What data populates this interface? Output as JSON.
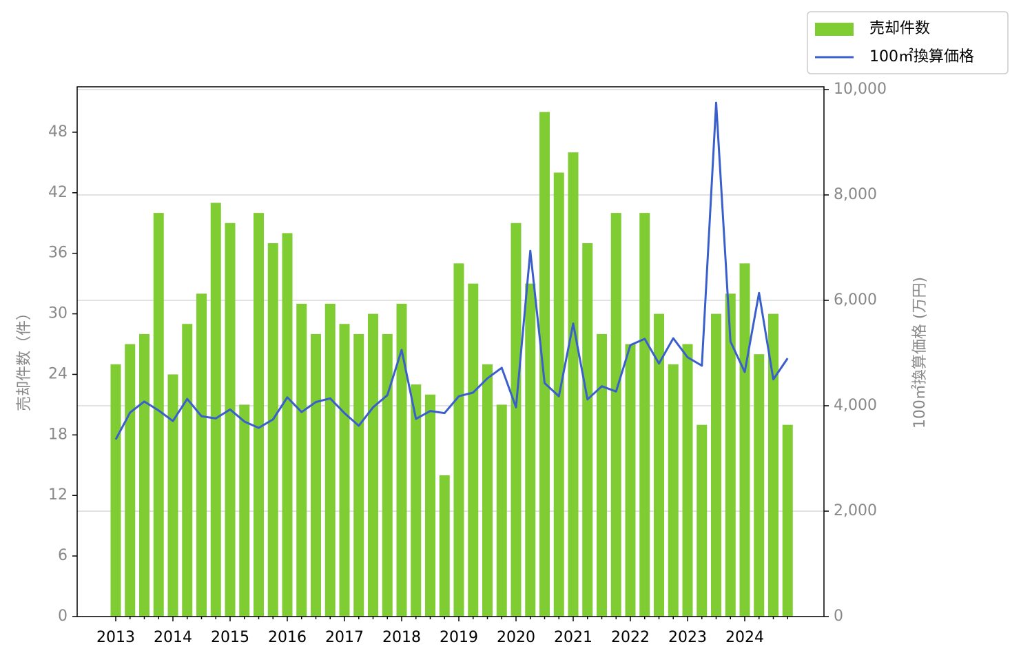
{
  "chart_data": {
    "type": "bar_line",
    "categories": [
      "2013",
      null,
      null,
      null,
      "2014",
      null,
      null,
      null,
      "2015",
      null,
      null,
      null,
      "2016",
      null,
      null,
      null,
      "2017",
      null,
      null,
      null,
      "2018",
      null,
      null,
      null,
      "2019",
      null,
      null,
      null,
      "2020",
      null,
      null,
      null,
      "2021",
      null,
      null,
      null,
      "2022",
      null,
      null,
      null,
      "2023",
      null,
      null,
      null,
      "2024",
      null,
      null,
      null
    ],
    "series": [
      {
        "name": "売却件数",
        "color": "#80cc33",
        "type": "bar",
        "values": [
          25,
          27,
          28,
          40,
          24,
          29,
          32,
          41,
          39,
          21,
          40,
          37,
          38,
          31,
          28,
          31,
          29,
          28,
          30,
          28,
          31,
          23,
          22,
          14,
          35,
          33,
          25,
          21,
          39,
          33,
          50,
          44,
          46,
          37,
          28,
          40,
          27,
          40,
          30,
          25,
          27,
          19,
          30,
          32,
          35,
          26,
          30,
          19
        ]
      },
      {
        "name": "100㎡換算価格",
        "color": "#3a5fcd",
        "type": "line",
        "axis": "y2",
        "values": [
          3360,
          3870,
          4080,
          3910,
          3710,
          4130,
          3800,
          3760,
          3930,
          3700,
          3580,
          3740,
          4160,
          3880,
          4070,
          4140,
          3860,
          3620,
          3970,
          4200,
          5060,
          3750,
          3900,
          3860,
          4180,
          4250,
          4520,
          4720,
          3970,
          6940,
          4430,
          4180,
          5560,
          4120,
          4370,
          4270,
          5150,
          5270,
          4800,
          5280,
          4920,
          4760,
          9750,
          5220,
          4640,
          6140,
          4500,
          4900
        ]
      }
    ],
    "y_label": "売却件数（件）",
    "y2_label": "100㎡換算価格 (万円)",
    "ylim": [
      0,
      52.5
    ],
    "yticks": [
      0,
      6,
      12,
      18,
      24,
      30,
      36,
      42,
      48
    ],
    "y2lim": [
      0,
      10052
    ],
    "y2ticks": [
      0,
      {
        "value": 2000,
        "label": "2,000"
      },
      {
        "value": 4000,
        "label": "4,000"
      },
      {
        "value": 6000,
        "label": "6,000"
      },
      {
        "value": 8000,
        "label": "8,000"
      },
      {
        "value": 10000,
        "label": "10,000"
      }
    ],
    "grid": "y2",
    "legend": "upper right"
  }
}
